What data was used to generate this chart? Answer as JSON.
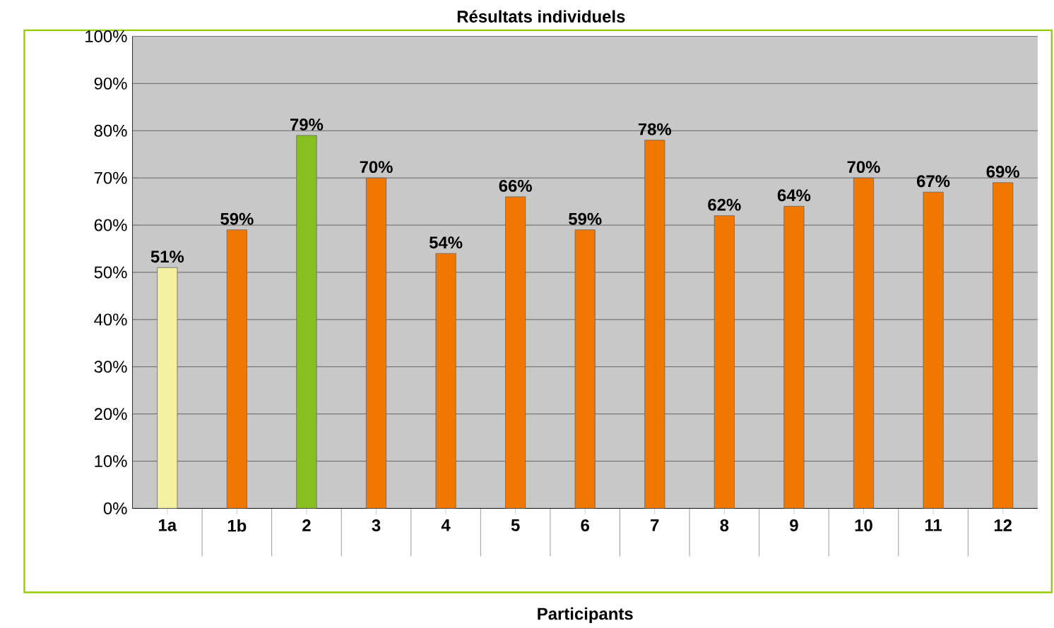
{
  "chart_data": {
    "type": "bar",
    "title": "Résultats individuels",
    "xlabel": "Participants",
    "categories": [
      "1a",
      "1b",
      "2",
      "3",
      "4",
      "5",
      "6",
      "7",
      "8",
      "9",
      "10",
      "11",
      "12"
    ],
    "values": [
      51,
      59,
      79,
      70,
      54,
      66,
      59,
      78,
      62,
      64,
      70,
      67,
      69
    ],
    "colors": [
      "#f3f0a0",
      "#f07800",
      "#88c020",
      "#f07800",
      "#f07800",
      "#f07800",
      "#f07800",
      "#f07800",
      "#f07800",
      "#f07800",
      "#f07800",
      "#f07800",
      "#f07800"
    ],
    "value_labels": [
      "51%",
      "59%",
      "79%",
      "70%",
      "54%",
      "66%",
      "59%",
      "78%",
      "62%",
      "64%",
      "70%",
      "67%",
      "69%"
    ],
    "ylim": [
      0,
      100
    ],
    "yticks": [
      {
        "value": 0,
        "label": "0%"
      },
      {
        "value": 10,
        "label": "10%"
      },
      {
        "value": 20,
        "label": "20%"
      },
      {
        "value": 30,
        "label": "30%"
      },
      {
        "value": 40,
        "label": "40%"
      },
      {
        "value": 50,
        "label": "50%"
      },
      {
        "value": 60,
        "label": "60%"
      },
      {
        "value": 70,
        "label": "70%"
      },
      {
        "value": 80,
        "label": "80%"
      },
      {
        "value": 90,
        "label": "90%"
      },
      {
        "value": 100,
        "label": "100%"
      }
    ],
    "grid": "y"
  }
}
